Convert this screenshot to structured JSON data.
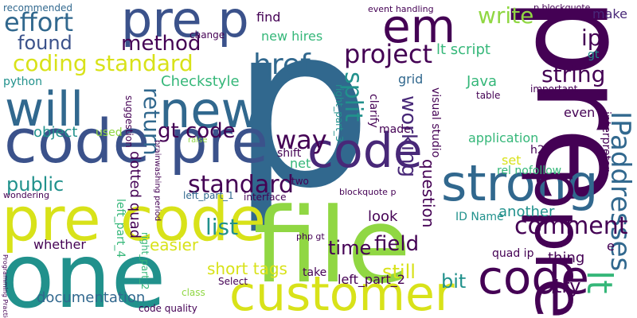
{
  "palette": {
    "dark_purple": "#440154",
    "indigo": "#3b528b",
    "blue": "#31688e",
    "teal": "#21918c",
    "green": "#35b779",
    "lime": "#90d743",
    "yellow": "#d8e219",
    "violet": "#482878"
  },
  "words": [
    {
      "text": "p",
      "color": "#31688e"
    },
    {
      "text": "pre",
      "color": "#440154"
    },
    {
      "text": "file",
      "color": "#90d743"
    },
    {
      "text": "pre p",
      "color": "#3b528b"
    },
    {
      "text": "em",
      "color": "#440154"
    },
    {
      "text": "one",
      "color": "#21918c"
    },
    {
      "text": "code pre",
      "color": "#3b528b"
    },
    {
      "text": "pre code",
      "color": "#d8e219"
    },
    {
      "text": "new",
      "color": "#31688e"
    },
    {
      "text": "will",
      "color": "#31688e"
    },
    {
      "text": "code",
      "color": "#482878"
    },
    {
      "text": "customer",
      "color": "#d8e219"
    },
    {
      "text": "strong",
      "color": "#31688e"
    },
    {
      "text": "code",
      "color": "#440154"
    },
    {
      "text": "lt",
      "color": "#35b779"
    },
    {
      "text": "ppre",
      "color": "#440154"
    },
    {
      "text": "IPaddresses",
      "color": "#31688e"
    },
    {
      "text": "effort",
      "color": "#31688e"
    },
    {
      "text": "found",
      "color": "#3b528b"
    },
    {
      "text": "method",
      "color": "#440154"
    },
    {
      "text": "coding standard",
      "color": "#d8e219"
    },
    {
      "text": "href",
      "color": "#31688e"
    },
    {
      "text": "write",
      "color": "#90d743"
    },
    {
      "text": "project",
      "color": "#440154"
    },
    {
      "text": "lt script",
      "color": "#35b779"
    },
    {
      "text": "ip",
      "color": "#440154"
    },
    {
      "text": "make",
      "color": "#482878"
    },
    {
      "text": "string",
      "color": "#440154"
    },
    {
      "text": "Checkstyle",
      "color": "#35b779"
    },
    {
      "text": "gt code",
      "color": "#440154"
    },
    {
      "text": "return",
      "color": "#31688e"
    },
    {
      "text": "split",
      "color": "#21918c"
    },
    {
      "text": "way",
      "color": "#440154"
    },
    {
      "text": "working",
      "color": "#482878"
    },
    {
      "text": "standard",
      "color": "#440154"
    },
    {
      "text": "comment",
      "color": "#440154"
    },
    {
      "text": "list",
      "color": "#21918c"
    },
    {
      "text": "time",
      "color": "#440154"
    },
    {
      "text": "field",
      "color": "#440154"
    },
    {
      "text": "Java",
      "color": "#35b779"
    },
    {
      "text": "question",
      "color": "#440154"
    },
    {
      "text": "public",
      "color": "#21918c"
    },
    {
      "text": "short tags",
      "color": "#d8e219"
    },
    {
      "text": "documentation",
      "color": "#31688e"
    },
    {
      "text": "new hires",
      "color": "#35b779"
    },
    {
      "text": "find",
      "color": "#440154"
    },
    {
      "text": "recommended",
      "color": "#31688e"
    },
    {
      "text": "object",
      "color": "#21918c"
    },
    {
      "text": "used",
      "color": "#90d743"
    },
    {
      "text": "python",
      "color": "#21918c"
    },
    {
      "text": "easier",
      "color": "#d8e219"
    },
    {
      "text": "whether",
      "color": "#440154"
    },
    {
      "text": "bit",
      "color": "#21918c"
    },
    {
      "text": "still",
      "color": "#d8e219"
    },
    {
      "text": "look",
      "color": "#440154"
    },
    {
      "text": "another",
      "color": "#21918c"
    },
    {
      "text": "application",
      "color": "#35b779"
    },
    {
      "text": "grid",
      "color": "#31688e"
    },
    {
      "text": "try",
      "color": "#440154"
    },
    {
      "text": "thing",
      "color": "#440154"
    },
    {
      "text": "ID Name",
      "color": "#21918c"
    },
    {
      "text": "quad ip",
      "color": "#440154"
    },
    {
      "text": "left_part_2",
      "color": "#440154"
    },
    {
      "text": "dotted quad",
      "color": "#440154"
    },
    {
      "text": "interpreter",
      "color": "#440154"
    },
    {
      "text": "even",
      "color": "#440154"
    },
    {
      "text": "set",
      "color": "#d8e219"
    },
    {
      "text": "net",
      "color": "#35b779"
    },
    {
      "text": "made",
      "color": "#440154"
    },
    {
      "text": "shift",
      "color": "#440154"
    },
    {
      "text": "visual studio",
      "color": "#440154"
    },
    {
      "text": "interface",
      "color": "#440154"
    },
    {
      "text": "change",
      "color": "#440154"
    },
    {
      "text": "clarify",
      "color": "#440154"
    },
    {
      "text": "two",
      "color": "#440154"
    },
    {
      "text": "important",
      "color": "#440154"
    },
    {
      "text": "rel nofollow",
      "color": "#35b779"
    },
    {
      "text": "Select",
      "color": "#440154"
    },
    {
      "text": "class",
      "color": "#90d743"
    },
    {
      "text": "take",
      "color": "#440154"
    },
    {
      "text": "code quality",
      "color": "#440154"
    },
    {
      "text": "left_part_1",
      "color": "#31688e"
    },
    {
      "text": "left_part_4",
      "color": "#35b779"
    },
    {
      "text": "right_part_3",
      "color": "#21918c"
    },
    {
      "text": "right_part_2",
      "color": "#35b779"
    },
    {
      "text": "blockquote p",
      "color": "#440154"
    },
    {
      "text": "wondering",
      "color": "#440154"
    },
    {
      "text": "gt",
      "color": "#21918c"
    },
    {
      "text": "php gt",
      "color": "#440154"
    },
    {
      "text": "suggestion",
      "color": "#440154"
    },
    {
      "text": "h2",
      "color": "#440154"
    },
    {
      "text": "table",
      "color": "#440154"
    },
    {
      "text": "e",
      "color": "#440154"
    },
    {
      "text": "raise",
      "color": "#90d743"
    },
    {
      "text": "p blockquote",
      "color": "#440154"
    },
    {
      "text": "event handling",
      "color": "#440154"
    },
    {
      "text": "brainwashing period",
      "color": "#440154"
    },
    {
      "text": "Programming Practices",
      "color": "#440154"
    }
  ]
}
